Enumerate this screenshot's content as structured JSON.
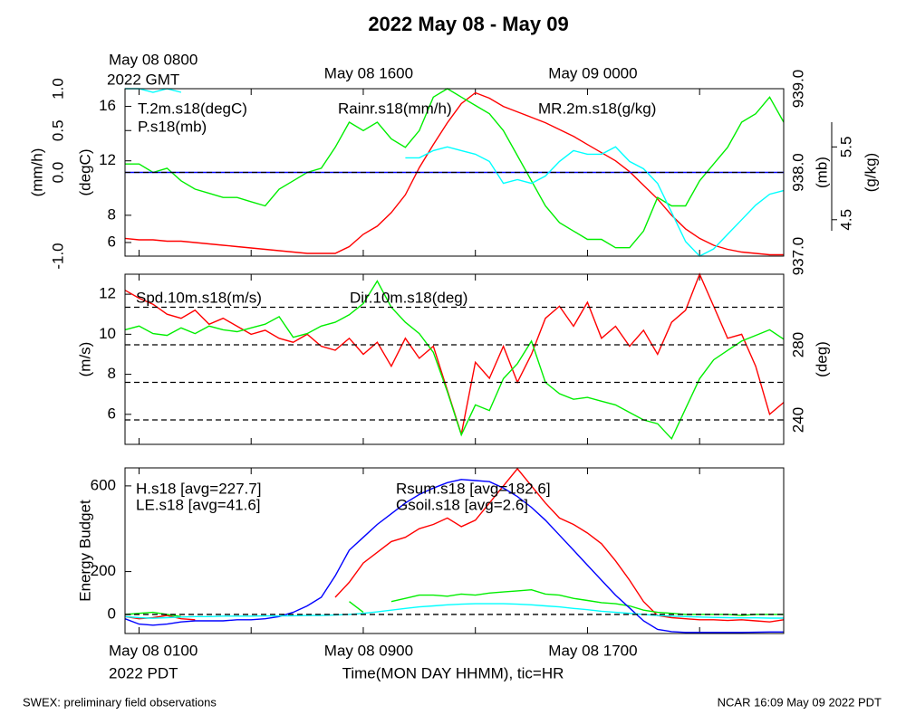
{
  "title": "2022 May 08 - May 09",
  "x_axis": {
    "x": [
      0.5,
      1,
      1.5,
      2,
      2.5,
      3,
      3.5,
      4,
      4.5,
      5,
      5.5,
      6,
      6.5,
      7,
      7.5,
      8,
      8.5,
      9,
      9.5,
      10,
      10.5,
      11,
      11.5,
      12,
      12.5,
      13,
      13.5,
      14,
      14.5,
      15,
      15.5,
      16,
      16.5,
      17,
      17.5,
      18,
      18.5,
      19,
      19.5,
      20,
      20.5,
      21,
      21.5,
      22,
      22.5,
      23,
      23.5,
      24
    ],
    "xlim": [
      0.5,
      24
    ],
    "xticks": [
      {
        "value": 1,
        "label": "May 08 0100"
      },
      {
        "value": 9,
        "label": "May 08 0900"
      },
      {
        "value": 17,
        "label": "May 08 1700"
      }
    ],
    "x2ticks": [
      {
        "value": 1,
        "label": "May 08 0800"
      },
      {
        "value": 9,
        "label": "May 08 1600"
      },
      {
        "value": 17,
        "label": "May 09 0000"
      }
    ],
    "minor_ticks": [
      5,
      13,
      21
    ],
    "label": "Time(MON DAY HHMM), tic=HR",
    "year_label": "2022 PDT",
    "year2_label": "2022 GMT"
  },
  "chart_data": [
    {
      "type": "line",
      "axes": [
        {
          "label": "(mm/h)",
          "ylim": [
            -1,
            1
          ],
          "yticks": [
            {
              "value": -1,
              "label": "-1.0"
            },
            {
              "value": 0,
              "label": "0.0"
            },
            {
              "value": 0.5,
              "label": "0.5"
            },
            {
              "value": 1,
              "label": "1.0"
            }
          ],
          "hlines": [
            0
          ]
        },
        {
          "label": "(degC)",
          "ylim": [
            5,
            17.3
          ],
          "yticks": [
            6,
            8,
            12,
            16
          ]
        },
        {
          "label": "(mb)",
          "ylim": [
            937,
            939
          ],
          "yticks": [
            {
              "value": 937,
              "label": "937.0"
            },
            {
              "value": 938,
              "label": "938.0"
            },
            {
              "value": 939,
              "label": "939.0"
            }
          ]
        },
        {
          "label": "(g/kg)",
          "ylim": [
            4.0,
            6.3
          ],
          "yticks": [
            4.5,
            5.5
          ]
        }
      ],
      "series": [
        {
          "name": "T.2m.s18(degC)",
          "color": "#ff0000",
          "axis": 1,
          "values": [
            6.3,
            6.2,
            6.2,
            6.1,
            6.1,
            6.0,
            5.9,
            5.8,
            5.7,
            5.6,
            5.5,
            5.4,
            5.3,
            5.2,
            5.2,
            5.2,
            5.7,
            6.6,
            7.2,
            8.2,
            9.5,
            11.5,
            13.2,
            14.8,
            16.2,
            17.0,
            16.6,
            16.0,
            15.6,
            15.2,
            14.8,
            14.3,
            13.8,
            13.2,
            12.6,
            12.0,
            11.2,
            10.2,
            9.2,
            8.0,
            7.0,
            6.3,
            5.8,
            5.5,
            5.3,
            5.2,
            5.1,
            5.1
          ]
        },
        {
          "name": "P.s18(mb)",
          "color": "#00ee00",
          "axis": 2,
          "values": [
            938.1,
            938.1,
            938.0,
            938.05,
            937.9,
            937.8,
            937.75,
            937.7,
            937.7,
            937.65,
            937.6,
            937.8,
            937.9,
            938.0,
            938.05,
            938.3,
            938.6,
            938.5,
            938.6,
            938.4,
            938.3,
            938.5,
            938.9,
            939.0,
            938.9,
            938.8,
            938.7,
            938.5,
            938.2,
            937.9,
            937.6,
            937.4,
            937.3,
            937.2,
            937.2,
            937.1,
            937.1,
            937.3,
            937.7,
            937.6,
            937.6,
            937.9,
            938.1,
            938.3,
            938.6,
            938.7,
            938.9,
            938.6
          ]
        },
        {
          "name": "Rainr.s18(mm/h)",
          "color": "#0000ff",
          "axis": 0,
          "values": [
            0,
            0,
            0,
            0,
            0,
            0,
            0,
            0,
            0,
            0,
            0,
            0,
            0,
            0,
            0,
            0,
            0,
            0,
            0,
            0,
            0,
            0,
            0,
            0,
            0,
            0,
            0,
            0,
            0,
            0,
            0,
            0,
            0,
            0,
            0,
            0,
            0,
            0,
            0,
            0,
            0,
            0,
            0,
            0,
            0,
            0,
            0,
            0
          ]
        },
        {
          "name": "MR.2m.s18(g/kg)",
          "color": "#00ffff",
          "axis": 3,
          "values": [
            6.3,
            6.3,
            6.25,
            6.3,
            6.25,
            null,
            null,
            null,
            null,
            null,
            null,
            null,
            null,
            null,
            null,
            null,
            null,
            null,
            null,
            null,
            5.35,
            5.35,
            5.45,
            5.5,
            5.45,
            5.4,
            5.3,
            5.0,
            5.05,
            5.0,
            5.1,
            5.3,
            5.45,
            5.4,
            5.4,
            5.5,
            5.3,
            5.2,
            5.0,
            4.6,
            4.2,
            4.0,
            4.1,
            4.3,
            4.5,
            4.7,
            4.85,
            4.9
          ]
        }
      ]
    },
    {
      "type": "line",
      "axes": [
        {
          "label": "(m/s)",
          "ylim": [
            4.5,
            13
          ],
          "yticks": [
            6,
            8,
            10,
            12
          ]
        },
        {
          "label": "(deg)",
          "ylim": [
            227,
            317.6
          ],
          "yticks": [
            240,
            280
          ],
          "hlines": [
            240,
            260,
            280,
            300
          ]
        }
      ],
      "series": [
        {
          "name": "Spd.10m.s18(m/s)",
          "color": "#ff0000",
          "axis": 0,
          "values": [
            12.2,
            11.8,
            11.5,
            11.0,
            10.8,
            11.2,
            10.5,
            10.8,
            10.4,
            10.0,
            10.2,
            9.8,
            9.6,
            10.0,
            9.4,
            9.2,
            9.8,
            9.0,
            9.6,
            8.4,
            9.8,
            8.8,
            9.4,
            7.2,
            5.0,
            8.6,
            7.8,
            9.4,
            7.6,
            9.0,
            10.8,
            11.4,
            10.4,
            11.6,
            9.8,
            10.4,
            9.4,
            10.2,
            9.0,
            10.6,
            11.2,
            13.0,
            11.4,
            9.8,
            10.0,
            8.4,
            6.0,
            6.6
          ]
        },
        {
          "name": "Dir.10m.s18(deg)",
          "color": "#00ee00",
          "axis": 1,
          "values": [
            288,
            290,
            286,
            285,
            289,
            286,
            290,
            288,
            287,
            289,
            291,
            295,
            284,
            286,
            290,
            292,
            296,
            302,
            314,
            300,
            292,
            286,
            276,
            255,
            232,
            248,
            245,
            262,
            270,
            282,
            260,
            254,
            251,
            252,
            250,
            248,
            244,
            240,
            238,
            230,
            246,
            262,
            272,
            277,
            282,
            285,
            288,
            283
          ]
        }
      ]
    },
    {
      "type": "line",
      "axes": [
        {
          "label": "Energy Budget",
          "ylim": [
            -89,
            684
          ],
          "yticks": [
            0,
            200,
            600
          ],
          "hlines": [
            0
          ]
        }
      ],
      "series": [
        {
          "name": "H.s18 [avg=227.7]",
          "color": "#ff0000",
          "axis": 0,
          "values": [
            -10,
            -20,
            -15,
            -5,
            -20,
            -25,
            null,
            null,
            null,
            null,
            null,
            null,
            null,
            null,
            null,
            80,
            150,
            240,
            290,
            340,
            360,
            400,
            420,
            450,
            410,
            440,
            520,
            600,
            680,
            600,
            520,
            450,
            420,
            380,
            330,
            250,
            160,
            60,
            -5,
            -15,
            -20,
            -25,
            -25,
            -28,
            -25,
            -30,
            -35,
            -25
          ]
        },
        {
          "name": "LE.s18 [avg=41.6]",
          "color": "#00ee00",
          "axis": 0,
          "values": [
            0,
            5,
            10,
            0,
            -10,
            null,
            null,
            null,
            null,
            null,
            null,
            null,
            null,
            null,
            null,
            null,
            60,
            10,
            null,
            60,
            75,
            90,
            90,
            85,
            95,
            90,
            100,
            105,
            110,
            115,
            95,
            90,
            75,
            65,
            55,
            50,
            40,
            20,
            10,
            5,
            0,
            0,
            0,
            0,
            -5,
            0,
            0,
            0
          ]
        },
        {
          "name": "Rsum.s18 [avg=182.6]",
          "color": "#0000ff",
          "axis": 0,
          "values": [
            -20,
            -45,
            -50,
            -45,
            -35,
            -30,
            -30,
            -30,
            -25,
            -25,
            -20,
            -10,
            10,
            40,
            80,
            180,
            300,
            360,
            420,
            470,
            520,
            560,
            590,
            615,
            630,
            625,
            620,
            590,
            550,
            500,
            440,
            370,
            300,
            230,
            160,
            90,
            30,
            -30,
            -70,
            -80,
            -84,
            -84,
            -84,
            -84,
            -84,
            -83,
            -82,
            -82
          ]
        },
        {
          "name": "Gsoil.s18 [avg=2.6]",
          "color": "#00ffff",
          "axis": 0,
          "values": [
            -10,
            -15,
            -18,
            -15,
            -12,
            -10,
            -10,
            -8,
            -8,
            -8,
            -7,
            -7,
            -6,
            -5,
            -5,
            -3,
            0,
            5,
            12,
            20,
            28,
            35,
            40,
            45,
            48,
            50,
            50,
            50,
            48,
            45,
            40,
            35,
            28,
            22,
            15,
            10,
            5,
            0,
            -5,
            -8,
            -10,
            -12,
            -14,
            -15,
            -16,
            -16,
            -17,
            -17
          ]
        }
      ]
    }
  ],
  "footer": {
    "left": "SWEX: preliminary field observations",
    "right": "NCAR 16:09 May 09 2022 PDT"
  }
}
